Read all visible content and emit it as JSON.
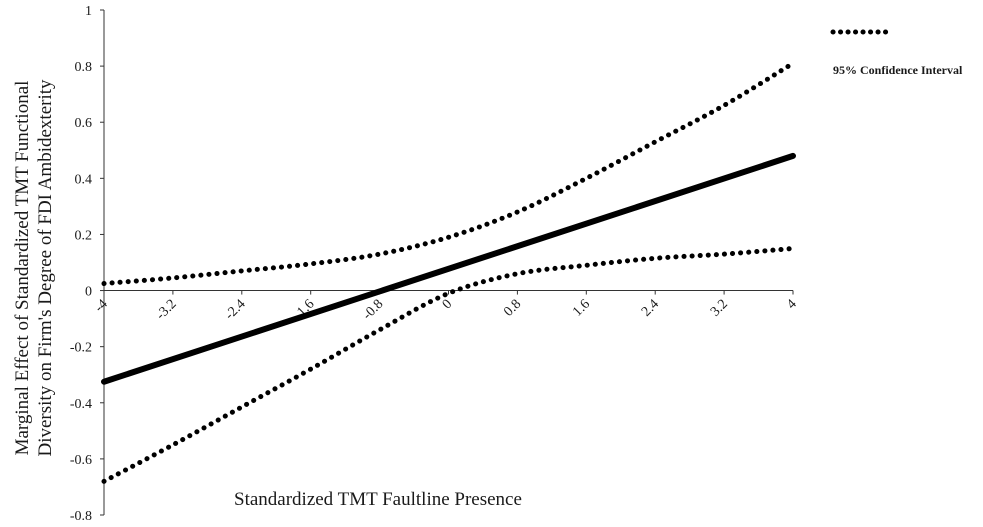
{
  "chart_data": {
    "type": "line",
    "xlabel": "Standardized TMT Faultline Presence",
    "ylabel_lines": [
      "Marginal Effect of Standardized TMT Functional",
      "Diversity on Firm's Degree of FDI Ambidexterity"
    ],
    "xlim": [
      -4,
      4
    ],
    "ylim": [
      -0.8,
      1
    ],
    "x_ticks": [
      "-4",
      "-3.2",
      "-2.4",
      "-1.6",
      "-0.8",
      "0",
      "0.8",
      "1.6",
      "2.4",
      "3.2",
      "4"
    ],
    "y_ticks": [
      "1",
      "0.8",
      "0.6",
      "0.4",
      "0.2",
      "0",
      "-0.2",
      "-0.4",
      "-0.6",
      "-0.8"
    ],
    "grid": false,
    "legend_position": "top-right",
    "legend": [
      {
        "label": "95% Confidence Interval",
        "style": "dotted"
      }
    ],
    "series": [
      {
        "style": "solid",
        "color": "#000000",
        "x": [
          -4,
          4
        ],
        "y": [
          -0.325,
          0.48
        ]
      },
      {
        "style": "dotted",
        "color": "#000000",
        "x": [
          -4,
          -3.2,
          -2.4,
          -1.6,
          -0.8,
          0,
          0.8,
          1.6,
          2.4,
          3.2,
          4
        ],
        "y": [
          0.025,
          0.045,
          0.07,
          0.095,
          0.13,
          0.19,
          0.28,
          0.4,
          0.53,
          0.66,
          0.81
        ]
      },
      {
        "style": "dotted",
        "color": "#000000",
        "x": [
          -4,
          -3.2,
          -2.4,
          -1.6,
          -0.8,
          0,
          0.8,
          1.6,
          2.4,
          3.2,
          4
        ],
        "y": [
          -0.68,
          -0.55,
          -0.415,
          -0.28,
          -0.14,
          -0.01,
          0.06,
          0.09,
          0.115,
          0.13,
          0.15
        ]
      }
    ]
  }
}
